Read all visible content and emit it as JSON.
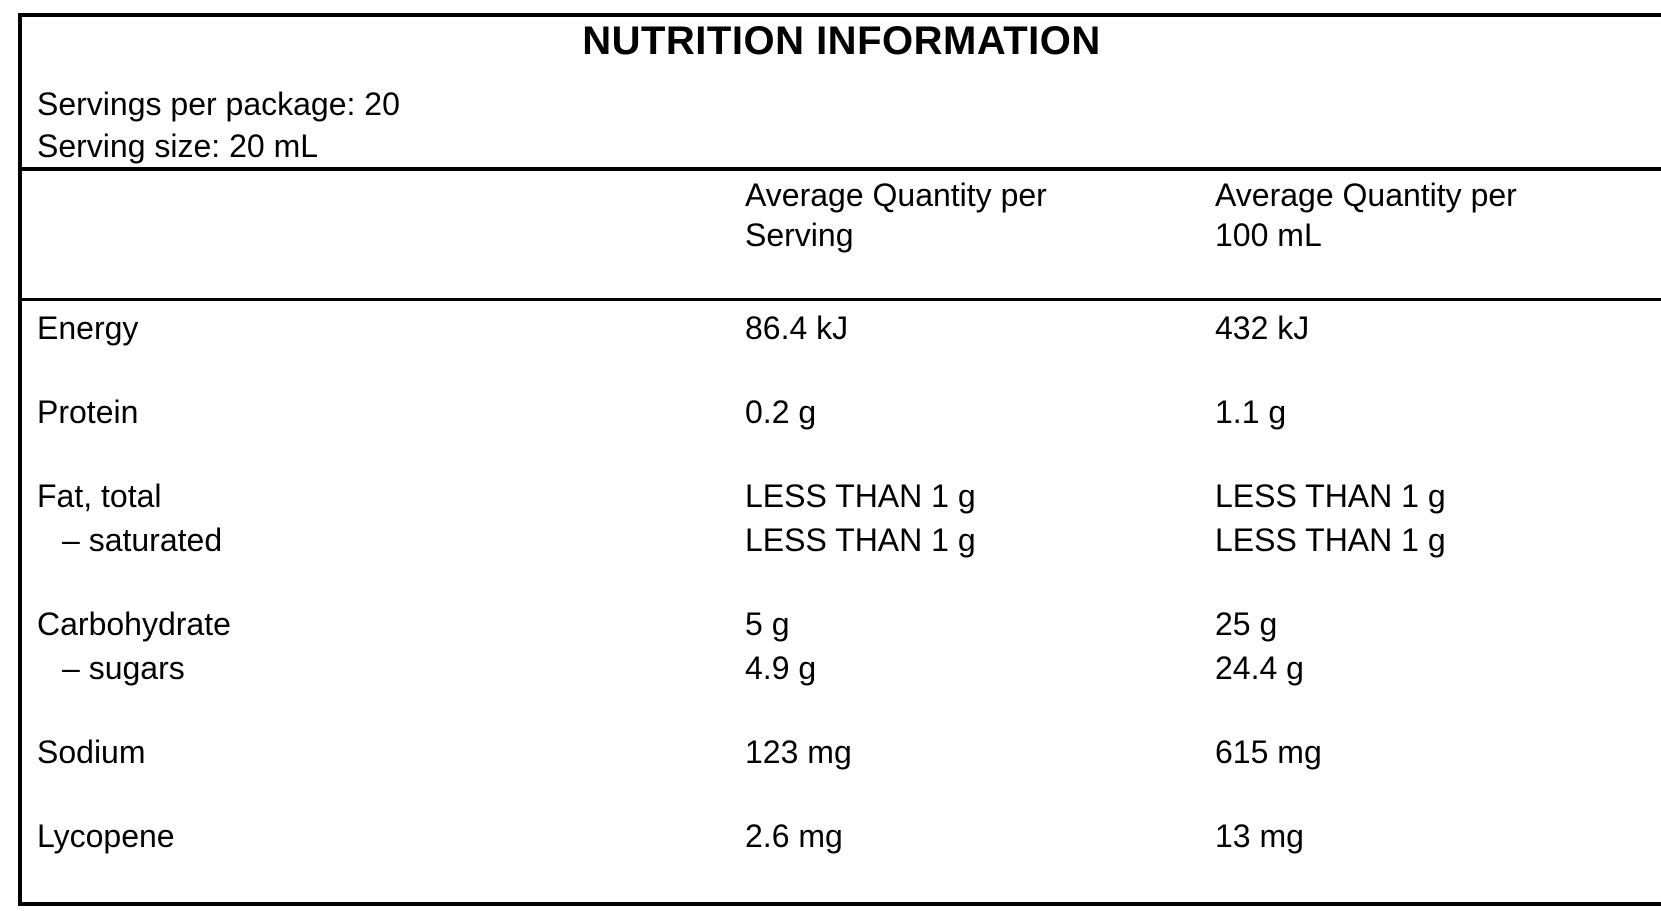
{
  "colors": {
    "text": "#000000",
    "background": "#ffffff",
    "border": "#000000"
  },
  "panel": {
    "title": "NUTRITION INFORMATION",
    "servings_per_package": "Servings per package: 20",
    "serving_size": "Serving size: 20 mL"
  },
  "table": {
    "columns": {
      "per_serving": {
        "line1": "Average Quantity per",
        "line2": "Serving"
      },
      "per_100ml": {
        "line1": "Average Quantity per",
        "line2": "100 mL"
      }
    },
    "rows": [
      {
        "label": "Energy",
        "per_serving": "86.4 kJ",
        "per_100ml": "432 kJ"
      },
      {
        "label": "Protein",
        "per_serving": "0.2 g",
        "per_100ml": "1.1 g"
      },
      {
        "label": "Fat, total",
        "per_serving": "LESS THAN 1 g",
        "per_100ml": "LESS THAN 1 g",
        "sub": {
          "label": "– saturated",
          "per_serving": "LESS THAN 1 g",
          "per_100ml": "LESS THAN 1 g"
        }
      },
      {
        "label": "Carbohydrate",
        "per_serving": "5 g",
        "per_100ml": "25 g",
        "sub": {
          "label": "– sugars",
          "per_serving": "4.9 g",
          "per_100ml": "24.4 g"
        }
      },
      {
        "label": "Sodium",
        "per_serving": "123 mg",
        "per_100ml": "615 mg"
      },
      {
        "label": "Lycopene",
        "per_serving": "2.6 mg",
        "per_100ml": "13 mg"
      }
    ]
  }
}
